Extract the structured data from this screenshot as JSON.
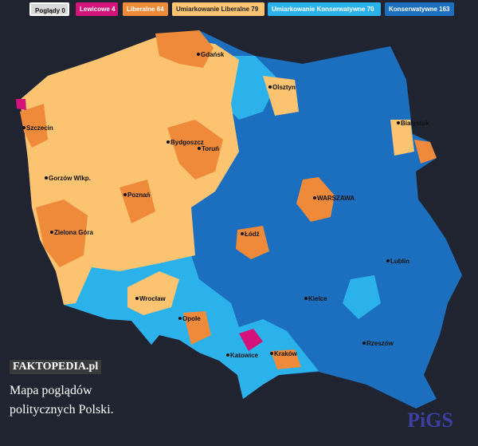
{
  "legend": [
    {
      "label": "Poglądy 0",
      "color": "#d9d9d9"
    },
    {
      "label": "Lewicowe 4",
      "color": "#d4137a"
    },
    {
      "label": "Liberalne 64",
      "color": "#ee8a3a"
    },
    {
      "label": "Umiarkowanie Liberalne 79",
      "color": "#fcc470"
    },
    {
      "label": "Umiarkowanie Konserwatywne 70",
      "color": "#2cb2ea"
    },
    {
      "label": "Konserwatywne 163",
      "color": "#1c6fbf"
    }
  ],
  "cities": [
    "Gdańsk",
    "Olsztyn",
    "Szczecin",
    "Białystok",
    "Bydgoszcz",
    "Toruń",
    "Gorzów Wlkp.",
    "Poznań",
    "WARSZAWA",
    "Łódź",
    "Zielona Góra",
    "Lublin",
    "Wrocław",
    "Kielce",
    "Opole",
    "Rzeszów",
    "Katowice",
    "Kraków"
  ],
  "watermark": "FAKTOPEDIA.pl",
  "caption": "Mapa poglądów politycznych Polski.",
  "logo": "PiGS"
}
